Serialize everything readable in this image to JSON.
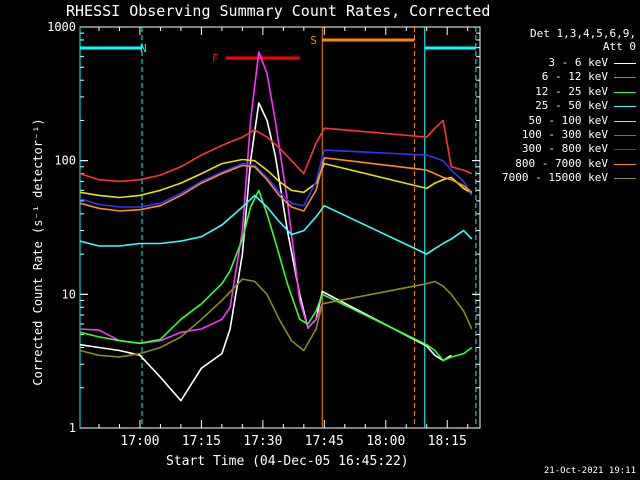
{
  "chart_data": {
    "type": "line",
    "title": "RHESSI Observing Summary Count Rates, Corrected",
    "xlabel": "Start Time (04-Dec-05 16:45:22)",
    "ylabel": "Corrected Count Rate (s⁻¹ detector⁻¹)",
    "y_scale": "log",
    "ylim": [
      1,
      1000
    ],
    "xlim": [
      "16:45:22",
      "18:23"
    ],
    "x_tick_labels": [
      "17:00",
      "17:15",
      "17:30",
      "17:45",
      "18:00",
      "18:15"
    ],
    "y_tick_labels": [
      "1",
      "10",
      "100",
      "1000"
    ],
    "detectors_label": "Det 1,3,4,5,6,9,",
    "attenuator_label": "Att 0",
    "footer_timestamp": "21-Oct-2021 19:11",
    "series": [
      {
        "name": "3 - 6 keV",
        "color": "#ffffff",
        "x": [
          "16:45:22",
          "16:50",
          "16:55",
          "17:00",
          "17:05",
          "17:10",
          "17:15",
          "17:20",
          "17:22",
          "17:25",
          "17:27",
          "17:29",
          "17:31",
          "17:33",
          "17:36",
          "17:39",
          "17:41",
          "17:43",
          "17:44:30",
          "18:10",
          "18:12",
          "18:14",
          "18:16"
        ],
        "y": [
          4.2,
          4.0,
          3.8,
          3.5,
          2.4,
          1.6,
          2.8,
          3.6,
          5.5,
          20,
          100,
          270,
          200,
          110,
          30,
          10,
          5.6,
          6.5,
          10.5,
          4.1,
          3.5,
          3.2,
          3.5
        ]
      },
      {
        "name": "6 - 12 keV",
        "color": "#ff33ff",
        "x": [
          "16:45:22",
          "16:50",
          "16:55",
          "17:00",
          "17:05",
          "17:10",
          "17:15",
          "17:20",
          "17:22",
          "17:25",
          "17:27",
          "17:29",
          "17:31",
          "17:33",
          "17:36",
          "17:39",
          "17:41",
          "17:43",
          "17:44:30"
        ],
        "y": [
          5.5,
          5.4,
          4.5,
          4.3,
          4.5,
          5.2,
          5.5,
          6.5,
          8,
          30,
          200,
          650,
          450,
          200,
          50,
          9,
          5.6,
          6.5,
          8.5
        ]
      },
      {
        "name": "12 - 25 keV",
        "color": "#33ff33",
        "x": [
          "16:45:22",
          "16:50",
          "16:55",
          "17:00",
          "17:05",
          "17:10",
          "17:15",
          "17:20",
          "17:22",
          "17:25",
          "17:27",
          "17:29",
          "17:31",
          "17:33",
          "17:36",
          "17:39",
          "17:41",
          "17:43",
          "17:44:30",
          "18:10",
          "18:12",
          "18:14",
          "18:16",
          "18:19",
          "18:21"
        ],
        "y": [
          5.2,
          4.8,
          4.5,
          4.3,
          4.6,
          6.5,
          8.5,
          12,
          15,
          26,
          45,
          60,
          40,
          25,
          12,
          6.5,
          6,
          7.5,
          10,
          4.2,
          3.8,
          3.2,
          3.4,
          3.6,
          4.0
        ]
      },
      {
        "name": "25 - 50 keV",
        "color": "#33ffff",
        "x": [
          "16:45:22",
          "16:50",
          "16:55",
          "17:00",
          "17:05",
          "17:10",
          "17:15",
          "17:20",
          "17:25",
          "17:28",
          "17:31",
          "17:34",
          "17:37",
          "17:40",
          "17:43",
          "17:45",
          "18:10",
          "18:12",
          "18:14",
          "18:16",
          "18:19",
          "18:21"
        ],
        "y": [
          25,
          23,
          23,
          24,
          24,
          25,
          27,
          33,
          45,
          55,
          45,
          35,
          28,
          30,
          38,
          46,
          20,
          22,
          24,
          26,
          30,
          26
        ]
      },
      {
        "name": "50 - 100 keV",
        "color": "#e5e500",
        "x": [
          "16:45:22",
          "16:50",
          "16:55",
          "17:00",
          "17:05",
          "17:10",
          "17:15",
          "17:20",
          "17:25",
          "17:28",
          "17:31",
          "17:34",
          "17:37",
          "17:40",
          "17:43",
          "17:45",
          "18:10",
          "18:12",
          "18:14",
          "18:16",
          "18:19",
          "18:21"
        ],
        "y": [
          58,
          55,
          53,
          55,
          60,
          68,
          80,
          95,
          102,
          100,
          85,
          70,
          60,
          58,
          68,
          95,
          62,
          68,
          72,
          75,
          62,
          57
        ]
      },
      {
        "name": "100 - 300 keV",
        "color": "#ff3333",
        "x": [
          "16:45:22",
          "16:50",
          "16:55",
          "17:00",
          "17:05",
          "17:10",
          "17:15",
          "17:20",
          "17:25",
          "17:28",
          "17:31",
          "17:34",
          "17:37",
          "17:40",
          "17:43",
          "17:45",
          "18:10",
          "18:12",
          "18:14",
          "18:16",
          "18:19",
          "18:21"
        ],
        "y": [
          80,
          72,
          70,
          72,
          78,
          90,
          110,
          130,
          150,
          170,
          150,
          125,
          100,
          80,
          135,
          175,
          150,
          175,
          200,
          90,
          85,
          80
        ]
      },
      {
        "name": "300 - 800 keV",
        "color": "#3333ff",
        "x": [
          "16:45:22",
          "16:50",
          "16:55",
          "17:00",
          "17:05",
          "17:10",
          "17:15",
          "17:20",
          "17:25",
          "17:28",
          "17:31",
          "17:34",
          "17:37",
          "17:40",
          "17:43",
          "17:45",
          "18:10",
          "18:12",
          "18:14",
          "18:16",
          "18:19",
          "18:21"
        ],
        "y": [
          52,
          47,
          45,
          45,
          48,
          57,
          70,
          82,
          95,
          92,
          75,
          58,
          48,
          46,
          70,
          120,
          110,
          105,
          100,
          85,
          70,
          55
        ]
      },
      {
        "name": "800 - 7000 keV",
        "color": "#ff8c1a",
        "x": [
          "16:45:22",
          "16:50",
          "16:55",
          "17:00",
          "17:05",
          "17:10",
          "17:15",
          "17:20",
          "17:25",
          "17:28",
          "17:31",
          "17:34",
          "17:37",
          "17:40",
          "17:43",
          "17:45",
          "18:10",
          "18:12",
          "18:14",
          "18:16",
          "18:19",
          "18:21"
        ],
        "y": [
          48,
          44,
          42,
          43,
          46,
          55,
          68,
          80,
          92,
          90,
          72,
          55,
          45,
          42,
          60,
          105,
          85,
          80,
          75,
          72,
          65,
          58
        ]
      },
      {
        "name": "7000 - 15000 keV",
        "color": "#8c8c1a",
        "x": [
          "16:45:22",
          "16:50",
          "16:55",
          "17:00",
          "17:05",
          "17:10",
          "17:15",
          "17:20",
          "17:25",
          "17:28",
          "17:31",
          "17:34",
          "17:37",
          "17:40",
          "17:43",
          "17:44:30",
          "18:10",
          "18:12",
          "18:14",
          "18:16",
          "18:19",
          "18:21"
        ],
        "y": [
          3.8,
          3.5,
          3.4,
          3.6,
          4.0,
          4.8,
          6.5,
          9,
          13,
          12.5,
          10,
          6.5,
          4.5,
          3.8,
          5.5,
          8.5,
          12,
          12.5,
          11.5,
          10,
          7.5,
          5.5
        ]
      }
    ],
    "annotations": [
      {
        "text": "N",
        "color": "#00ffff",
        "type": "night",
        "x_start": "16:45:22",
        "x_end": "17:00:30"
      },
      {
        "text": "F",
        "color": "#ff0000",
        "type": "flare",
        "x_start": "17:21",
        "x_end": "17:39"
      },
      {
        "text": "S",
        "color": "#ff8800",
        "type": "saa",
        "x_start": "17:44:30",
        "x_end": "18:07"
      },
      {
        "text": "",
        "color": "#00ffff",
        "type": "night",
        "x_start": "18:09:30",
        "x_end": "18:22"
      }
    ]
  }
}
